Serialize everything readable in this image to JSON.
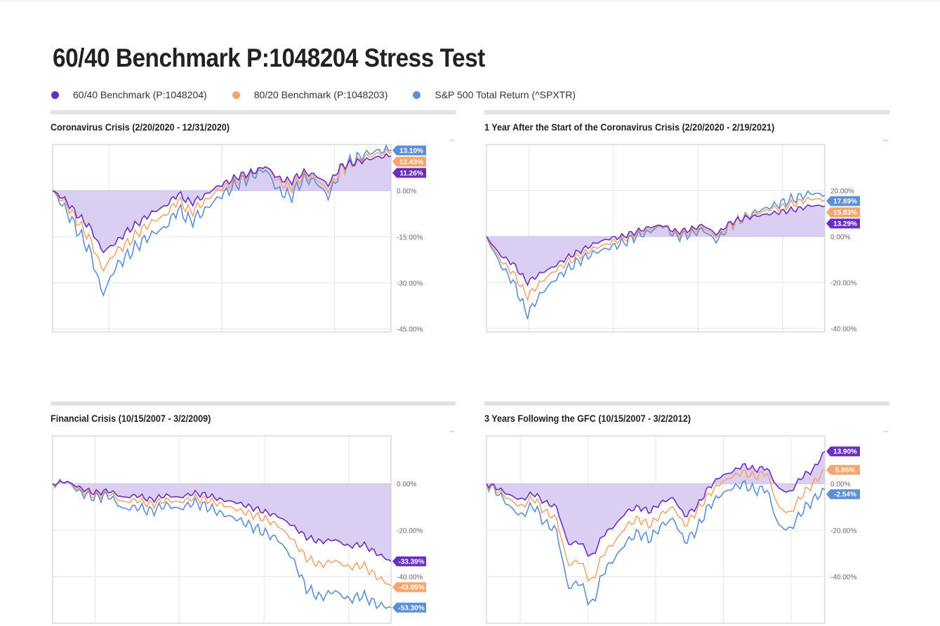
{
  "page_title": "60/40 Benchmark P:1048204 Stress Test",
  "legend": [
    {
      "label": "60/40 Benchmark (P:1048204)",
      "color": "#6a2fc2"
    },
    {
      "label": "80/20 Benchmark (P:1048203)",
      "color": "#f7a46e"
    },
    {
      "label": "S&P 500 Total Return (^SPXTR)",
      "color": "#5b8fd6"
    }
  ],
  "colors": {
    "fill": "#d8ccf1",
    "grid": "#e6e6e6",
    "axis_text": "#666666"
  },
  "chart_data": [
    {
      "type": "line",
      "title": "Coronavirus Crisis (2/20/2020 - 12/31/2020)",
      "x_range": [
        "2/20/2020",
        "12/31/2020"
      ],
      "ylim": [
        -46,
        15
      ],
      "yticks": [
        0,
        -15,
        -30,
        -45
      ],
      "ytick_labels": [
        "0.00%",
        "-15.00%",
        "-30.00%",
        "-45.00%"
      ],
      "vgrid": 3,
      "fill_series": 0,
      "series": [
        {
          "name": "60/40 Benchmark (P:1048204)",
          "end_label": "11.26%",
          "values": [
            0,
            -3,
            -8,
            -12,
            -20,
            -17,
            -13,
            -10,
            -7,
            -5,
            -1,
            -4,
            -2,
            1,
            3,
            5,
            6,
            8,
            4,
            3,
            6,
            5,
            2,
            8,
            9,
            10,
            11,
            11.26
          ]
        },
        {
          "name": "80/20 Benchmark (P:1048203)",
          "end_label": "12.43%",
          "values": [
            0,
            -4,
            -10,
            -16,
            -26,
            -20,
            -17,
            -13,
            -10,
            -8,
            -3,
            -7,
            -4,
            -0.5,
            2,
            4,
            6,
            8,
            3,
            1,
            5,
            4,
            0,
            7,
            9,
            11,
            12,
            12.43
          ]
        },
        {
          "name": "S&P 500 Total Return (^SPXTR)",
          "end_label": "13.10%",
          "values": [
            0,
            -6,
            -13,
            -20,
            -34,
            -25,
            -21,
            -17,
            -14,
            -12,
            -6,
            -10,
            -7,
            -3,
            0,
            3,
            5,
            7,
            0,
            -2,
            4,
            3,
            -2,
            7,
            10,
            12,
            13,
            13.1
          ]
        }
      ]
    },
    {
      "type": "line",
      "title": "1 Year After the Start of the Coronavirus Crisis (2/20/2020 - 2/19/2021)",
      "x_range": [
        "2/20/2020",
        "2/19/2021"
      ],
      "ylim": [
        -41.5,
        40
      ],
      "yticks": [
        20,
        0,
        -20,
        -40
      ],
      "ytick_labels": [
        "20.00%",
        "0.00%",
        "-20.00%",
        "-40.00%"
      ],
      "vgrid": 4,
      "fill_series": 0,
      "series": [
        {
          "name": "60/40 Benchmark (P:1048204)",
          "end_label": "13.29%",
          "values": [
            0,
            -8,
            -12,
            -20,
            -16,
            -13,
            -9,
            -6,
            -3,
            -1,
            0,
            2,
            4,
            5,
            2,
            3,
            5,
            1,
            6,
            8,
            9,
            10,
            11,
            12,
            13.5,
            13.29
          ]
        },
        {
          "name": "80/20 Benchmark (P:1048203)",
          "end_label": "15.83%",
          "values": [
            0,
            -10,
            -16,
            -26,
            -20,
            -15,
            -11,
            -8,
            -5,
            -3,
            -1,
            1,
            3,
            5,
            1,
            2,
            4,
            0,
            5,
            8,
            10,
            12,
            13,
            15,
            16.5,
            15.83
          ]
        },
        {
          "name": "S&P 500 Total Return (^SPXTR)",
          "end_label": "17.89%",
          "values": [
            0,
            -12,
            -20,
            -34,
            -25,
            -19,
            -14,
            -10,
            -7,
            -5,
            -3,
            0,
            2,
            5,
            0,
            1,
            3,
            -2,
            5,
            8,
            11,
            13,
            15,
            17,
            19,
            17.89
          ]
        }
      ]
    },
    {
      "type": "line",
      "title": "Financial Crisis (10/15/2007 - 3/2/2009)",
      "x_range": [
        "10/15/2007",
        "3/2/2009"
      ],
      "ylim": [
        -60,
        20.6
      ],
      "yticks": [
        0,
        -20,
        -40
      ],
      "ytick_labels": [
        "0.00%",
        "-20.00%",
        "-40.00%"
      ],
      "vgrid": 4,
      "fill_series": 0,
      "series": [
        {
          "name": "60/40 Benchmark (P:1048204)",
          "end_label": "-33.39%",
          "values": [
            0,
            1,
            -2,
            -4,
            -3,
            -6,
            -5,
            -7,
            -5,
            -6,
            -4,
            -5,
            -7,
            -8,
            -10,
            -12,
            -14,
            -18,
            -23,
            -25,
            -24,
            -27,
            -26,
            -30,
            -33.39
          ]
        },
        {
          "name": "80/20 Benchmark (P:1048203)",
          "end_label": "-43.95%",
          "values": [
            0,
            1,
            -3,
            -5,
            -4,
            -8,
            -7,
            -9,
            -7,
            -8,
            -6,
            -7,
            -9,
            -11,
            -13,
            -15,
            -18,
            -24,
            -32,
            -35,
            -33,
            -36,
            -35,
            -40,
            -43.95
          ]
        },
        {
          "name": "S&P 500 Total Return (^SPXTR)",
          "end_label": "-53.30%",
          "values": [
            0,
            1,
            -4,
            -6,
            -5,
            -11,
            -10,
            -12,
            -9,
            -11,
            -8,
            -10,
            -13,
            -15,
            -18,
            -21,
            -24,
            -32,
            -45,
            -49,
            -46,
            -50,
            -48,
            -52,
            -53.3
          ]
        }
      ]
    },
    {
      "type": "line",
      "title": "3 Years Following the GFC (10/15/2007 - 3/2/2012)",
      "x_range": [
        "10/15/2007",
        "3/2/2012"
      ],
      "ylim": [
        -60,
        20.6
      ],
      "yticks": [
        0,
        -20,
        -40
      ],
      "ytick_labels": [
        "0.00%",
        "-20.00%",
        "-40.00%"
      ],
      "vgrid": 5,
      "fill_series": 0,
      "series": [
        {
          "name": "60/40 Benchmark (P:1048204)",
          "end_label": "13.90%",
          "values": [
            0,
            -2,
            -5,
            -7,
            -4,
            -8,
            -10,
            -26,
            -25,
            -32,
            -22,
            -18,
            -12,
            -10,
            -12,
            -8,
            -6,
            -14,
            -10,
            -2,
            3,
            5,
            8,
            6,
            7,
            -2,
            -4,
            3,
            6,
            13.9
          ]
        },
        {
          "name": "80/20 Benchmark (P:1048203)",
          "end_label": "5.95%",
          "values": [
            0,
            -3,
            -7,
            -10,
            -6,
            -12,
            -15,
            -35,
            -33,
            -43,
            -30,
            -25,
            -18,
            -15,
            -18,
            -13,
            -10,
            -18,
            -12,
            -5,
            0,
            3,
            5,
            3,
            5,
            -10,
            -13,
            -5,
            0,
            5.95
          ]
        },
        {
          "name": "S&P 500 Total Return (^SPXTR)",
          "end_label": "-2.54%",
          "values": [
            0,
            -4,
            -10,
            -14,
            -9,
            -17,
            -20,
            -45,
            -42,
            -53,
            -38,
            -32,
            -25,
            -21,
            -24,
            -18,
            -15,
            -25,
            -20,
            -10,
            -5,
            -2,
            0,
            -3,
            -2,
            -18,
            -20,
            -12,
            -7,
            -2.54
          ]
        }
      ]
    }
  ]
}
